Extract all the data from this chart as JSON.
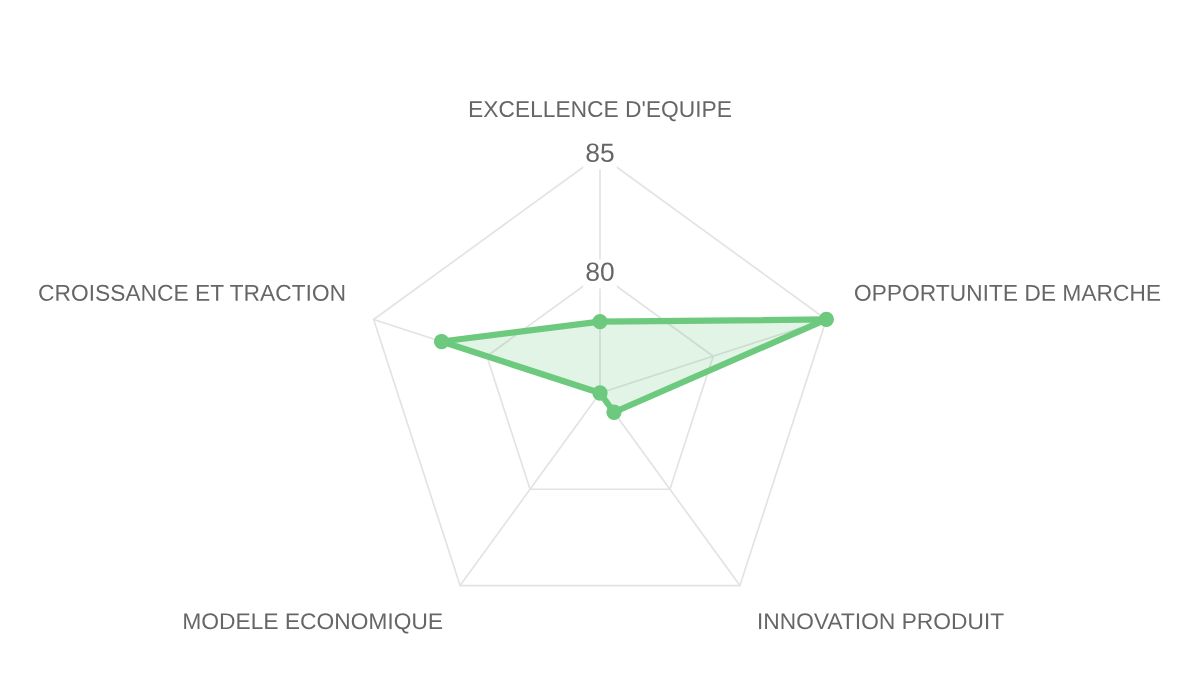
{
  "chart_data": {
    "type": "radar",
    "categories": [
      "EXCELLENCE D'EQUIPE",
      "OPPORTUNITE DE MARCHE",
      "INNOVATION PRODUIT",
      "MODELE ECONOMIQUE",
      "CROISSANCE ET TRACTION"
    ],
    "series": [
      {
        "color": "#6cc97e",
        "values": [
          78,
          85,
          76,
          75,
          82
        ]
      }
    ],
    "ylim": [
      75,
      85
    ],
    "yticks": [
      80,
      85
    ],
    "grid": true,
    "marker": "circle"
  }
}
